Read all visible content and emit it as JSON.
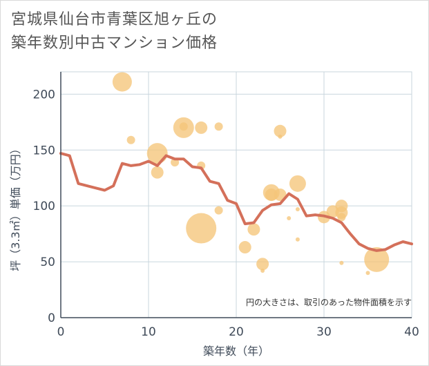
{
  "title_line1": "宮城県仙台市青葉区旭ヶ丘の",
  "title_line2": "築年数別中古マンション価格",
  "chart_data": {
    "type": "scatter",
    "xlabel": "築年数（年）",
    "ylabel": "坪（3.3㎡）単価（万円）",
    "xlim": [
      0,
      40
    ],
    "ylim": [
      0,
      220
    ],
    "x_ticks": [
      "0",
      "10",
      "20",
      "30",
      "40"
    ],
    "y_ticks": [
      "0",
      "50",
      "100",
      "150",
      "200"
    ],
    "x_tick_values": [
      0,
      10,
      20,
      30,
      40
    ],
    "y_tick_values": [
      0,
      50,
      100,
      150,
      200
    ],
    "grid": true,
    "annotation": "円の大きさは、取引のあった物件面積を示す",
    "colors": {
      "bubble": "#f5c57a",
      "line": "#d4705a",
      "grid": "#c8d6de",
      "axis": "#3f4a58"
    },
    "bubbles": [
      {
        "x": 7,
        "y": 211,
        "size": 14
      },
      {
        "x": 8,
        "y": 159,
        "size": 6
      },
      {
        "x": 11,
        "y": 147,
        "size": 15
      },
      {
        "x": 11,
        "y": 130,
        "size": 9
      },
      {
        "x": 13,
        "y": 139,
        "size": 6
      },
      {
        "x": 14,
        "y": 170,
        "size": 15
      },
      {
        "x": 14,
        "y": 171,
        "size": 6
      },
      {
        "x": 16,
        "y": 170,
        "size": 9
      },
      {
        "x": 16,
        "y": 136,
        "size": 6
      },
      {
        "x": 16,
        "y": 80,
        "size": 22
      },
      {
        "x": 18,
        "y": 171,
        "size": 6
      },
      {
        "x": 18,
        "y": 96,
        "size": 6
      },
      {
        "x": 21,
        "y": 63,
        "size": 9
      },
      {
        "x": 22,
        "y": 79,
        "size": 9
      },
      {
        "x": 23,
        "y": 48,
        "size": 9
      },
      {
        "x": 23,
        "y": 42,
        "size": 3
      },
      {
        "x": 24,
        "y": 112,
        "size": 12
      },
      {
        "x": 24,
        "y": 110,
        "size": 9
      },
      {
        "x": 25,
        "y": 167,
        "size": 9
      },
      {
        "x": 25,
        "y": 162,
        "size": 3
      },
      {
        "x": 25,
        "y": 110,
        "size": 9
      },
      {
        "x": 26,
        "y": 89,
        "size": 3
      },
      {
        "x": 27,
        "y": 120,
        "size": 12
      },
      {
        "x": 27,
        "y": 97,
        "size": 3
      },
      {
        "x": 27,
        "y": 70,
        "size": 3
      },
      {
        "x": 30,
        "y": 90,
        "size": 9
      },
      {
        "x": 31,
        "y": 95,
        "size": 9
      },
      {
        "x": 32,
        "y": 100,
        "size": 9
      },
      {
        "x": 32,
        "y": 94,
        "size": 9
      },
      {
        "x": 32,
        "y": 90,
        "size": 6
      },
      {
        "x": 32,
        "y": 49,
        "size": 3
      },
      {
        "x": 35,
        "y": 40,
        "size": 3
      },
      {
        "x": 36,
        "y": 52,
        "size": 18
      }
    ],
    "series": [
      {
        "x": [
          0,
          1,
          2,
          3,
          4,
          5,
          6,
          7,
          8,
          9,
          10,
          11,
          12,
          13,
          14,
          15,
          16,
          17,
          18,
          19,
          20,
          21,
          22,
          23,
          24,
          25,
          26,
          27,
          28,
          29,
          30,
          31,
          32,
          33,
          34,
          35,
          36,
          37,
          38,
          39,
          40
        ],
        "values": [
          147,
          145,
          120,
          118,
          116,
          114,
          118,
          138,
          136,
          137,
          140,
          136,
          145,
          142,
          142,
          135,
          134,
          122,
          120,
          105,
          102,
          84,
          85,
          96,
          101,
          102,
          111,
          106,
          91,
          92,
          91,
          89,
          85,
          75,
          66,
          62,
          60,
          61,
          65,
          68,
          66
        ]
      }
    ]
  }
}
